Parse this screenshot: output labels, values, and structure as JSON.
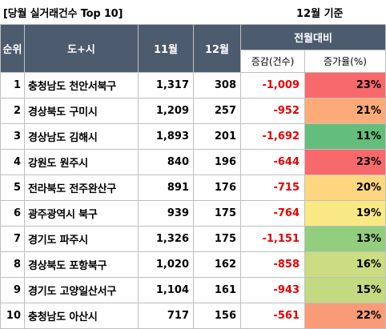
{
  "caption": {
    "title": "[당월 실거래건수 Top 10]",
    "basis": "12월 기준"
  },
  "header": {
    "rank": "순위",
    "region": "도+시",
    "nov": "11월",
    "dec": "12월",
    "mom": "전월대비",
    "change": "증감(건수)",
    "rate": "증가율(%)"
  },
  "colors": {
    "header_bg": "#4d5b6e",
    "negative_text": "#e60000",
    "rate_23": "#f8696b",
    "rate_22": "#f99b76",
    "rate_21": "#fcaa78",
    "rate_20": "#fed680",
    "rate_19": "#f8e984",
    "rate_16": "#cbdc81",
    "rate_15": "#c3da81",
    "rate_13": "#93cd7e",
    "rate_11": "#63be7b"
  },
  "rows": [
    {
      "rank": "1",
      "region": "충청남도 천안서북구",
      "nov": "1,317",
      "dec": "308",
      "change": "-1,009",
      "rate": "23%",
      "color": "#f8696b"
    },
    {
      "rank": "2",
      "region": "경상북도 구미시",
      "nov": "1,209",
      "dec": "257",
      "change": "-952",
      "rate": "21%",
      "color": "#fcaa78"
    },
    {
      "rank": "3",
      "region": "경상남도 김해시",
      "nov": "1,893",
      "dec": "201",
      "change": "-1,692",
      "rate": "11%",
      "color": "#63be7b"
    },
    {
      "rank": "4",
      "region": "강원도 원주시",
      "nov": "840",
      "dec": "196",
      "change": "-644",
      "rate": "23%",
      "color": "#f8696b"
    },
    {
      "rank": "5",
      "region": "전라북도 전주완산구",
      "nov": "891",
      "dec": "176",
      "change": "-715",
      "rate": "20%",
      "color": "#fed680"
    },
    {
      "rank": "6",
      "region": "광주광역시 북구",
      "nov": "939",
      "dec": "175",
      "change": "-764",
      "rate": "19%",
      "color": "#f8e984"
    },
    {
      "rank": "7",
      "region": "경기도 파주시",
      "nov": "1,326",
      "dec": "175",
      "change": "-1,151",
      "rate": "13%",
      "color": "#93cd7e"
    },
    {
      "rank": "8",
      "region": "경상북도 포항북구",
      "nov": "1,020",
      "dec": "162",
      "change": "-858",
      "rate": "16%",
      "color": "#cbdc81"
    },
    {
      "rank": "9",
      "region": "경기도 고양일산서구",
      "nov": "1,104",
      "dec": "161",
      "change": "-943",
      "rate": "15%",
      "color": "#c3da81"
    },
    {
      "rank": "10",
      "region": "충청남도 아산시",
      "nov": "717",
      "dec": "156",
      "change": "-561",
      "rate": "22%",
      "color": "#f99b76"
    }
  ]
}
